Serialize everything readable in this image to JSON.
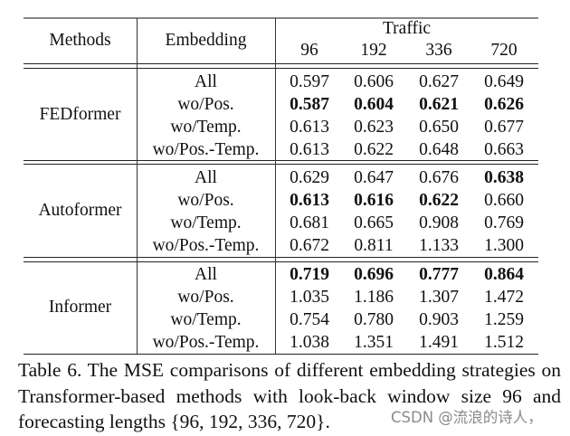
{
  "table": {
    "header": {
      "methods": "Methods",
      "embedding": "Embedding",
      "dataset": "Traffic",
      "horizons": [
        "96",
        "192",
        "336",
        "720"
      ]
    },
    "groups": [
      {
        "method": "FEDformer",
        "rows": [
          {
            "embedding": "All",
            "values": [
              "0.597",
              "0.606",
              "0.627",
              "0.649"
            ],
            "bold": [
              false,
              false,
              false,
              false
            ]
          },
          {
            "embedding": "wo/Pos.",
            "values": [
              "0.587",
              "0.604",
              "0.621",
              "0.626"
            ],
            "bold": [
              true,
              true,
              true,
              true
            ]
          },
          {
            "embedding": "wo/Temp.",
            "values": [
              "0.613",
              "0.623",
              "0.650",
              "0.677"
            ],
            "bold": [
              false,
              false,
              false,
              false
            ]
          },
          {
            "embedding": "wo/Pos.-Temp.",
            "values": [
              "0.613",
              "0.622",
              "0.648",
              "0.663"
            ],
            "bold": [
              false,
              false,
              false,
              false
            ]
          }
        ]
      },
      {
        "method": "Autoformer",
        "rows": [
          {
            "embedding": "All",
            "values": [
              "0.629",
              "0.647",
              "0.676",
              "0.638"
            ],
            "bold": [
              false,
              false,
              false,
              true
            ]
          },
          {
            "embedding": "wo/Pos.",
            "values": [
              "0.613",
              "0.616",
              "0.622",
              "0.660"
            ],
            "bold": [
              true,
              true,
              true,
              false
            ]
          },
          {
            "embedding": "wo/Temp.",
            "values": [
              "0.681",
              "0.665",
              "0.908",
              "0.769"
            ],
            "bold": [
              false,
              false,
              false,
              false
            ]
          },
          {
            "embedding": "wo/Pos.-Temp.",
            "values": [
              "0.672",
              "0.811",
              "1.133",
              "1.300"
            ],
            "bold": [
              false,
              false,
              false,
              false
            ]
          }
        ]
      },
      {
        "method": "Informer",
        "rows": [
          {
            "embedding": "All",
            "values": [
              "0.719",
              "0.696",
              "0.777",
              "0.864"
            ],
            "bold": [
              true,
              true,
              true,
              true
            ]
          },
          {
            "embedding": "wo/Pos.",
            "values": [
              "1.035",
              "1.186",
              "1.307",
              "1.472"
            ],
            "bold": [
              false,
              false,
              false,
              false
            ]
          },
          {
            "embedding": "wo/Temp.",
            "values": [
              "0.754",
              "0.780",
              "0.903",
              "1.259"
            ],
            "bold": [
              false,
              false,
              false,
              false
            ]
          },
          {
            "embedding": "wo/Pos.-Temp.",
            "values": [
              "1.038",
              "1.351",
              "1.491",
              "1.512"
            ],
            "bold": [
              false,
              false,
              false,
              false
            ]
          }
        ]
      }
    ]
  },
  "caption": "Table 6.  The MSE comparisons of different embedding strategies on Transformer-based methods with look-back window size 96 and forecasting lengths {96, 192, 336, 720}.",
  "watermark": "CSDN @流浪的诗人，",
  "chart_data": {
    "type": "table",
    "title": "Table 6. The MSE comparisons of different embedding strategies on Transformer-based methods with look-back window size 96 and forecasting lengths {96, 192, 336, 720}.",
    "columns": [
      "Methods",
      "Embedding",
      "Traffic-96",
      "Traffic-192",
      "Traffic-336",
      "Traffic-720"
    ],
    "rows": [
      [
        "FEDformer",
        "All",
        0.597,
        0.606,
        0.627,
        0.649
      ],
      [
        "FEDformer",
        "wo/Pos.",
        0.587,
        0.604,
        0.621,
        0.626
      ],
      [
        "FEDformer",
        "wo/Temp.",
        0.613,
        0.623,
        0.65,
        0.677
      ],
      [
        "FEDformer",
        "wo/Pos.-Temp.",
        0.613,
        0.622,
        0.648,
        0.663
      ],
      [
        "Autoformer",
        "All",
        0.629,
        0.647,
        0.676,
        0.638
      ],
      [
        "Autoformer",
        "wo/Pos.",
        0.613,
        0.616,
        0.622,
        0.66
      ],
      [
        "Autoformer",
        "wo/Temp.",
        0.681,
        0.665,
        0.908,
        0.769
      ],
      [
        "Autoformer",
        "wo/Pos.-Temp.",
        0.672,
        0.811,
        1.133,
        1.3
      ],
      [
        "Informer",
        "All",
        0.719,
        0.696,
        0.777,
        0.864
      ],
      [
        "Informer",
        "wo/Pos.",
        1.035,
        1.186,
        1.307,
        1.472
      ],
      [
        "Informer",
        "wo/Temp.",
        0.754,
        0.78,
        0.903,
        1.259
      ],
      [
        "Informer",
        "wo/Pos.-Temp.",
        1.038,
        1.351,
        1.491,
        1.512
      ]
    ]
  }
}
